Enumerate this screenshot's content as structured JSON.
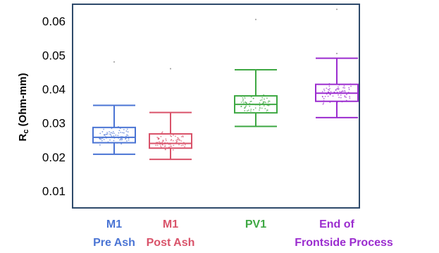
{
  "chart_data": {
    "type": "box",
    "ylabel": "Rc (Ohm-mm)",
    "ylabel_main": "R",
    "ylabel_sub": "c",
    "ylabel_rest": " (Ohm-mm)",
    "ylim": [
      0.005,
      0.065
    ],
    "yticks": [
      "0.01",
      "0.02",
      "0.03",
      "0.04",
      "0.05",
      "0.06"
    ],
    "ytick_values": [
      0.01,
      0.02,
      0.03,
      0.04,
      0.05,
      0.06
    ],
    "grid": false,
    "categories": [
      {
        "line1": "M1",
        "line2": "Pre Ash",
        "color": "#4a74d4",
        "whisker_low": 0.0208,
        "q1": 0.0242,
        "median": 0.0258,
        "q3": 0.0287,
        "whisker_high": 0.0352,
        "outliers": [
          0.048
        ]
      },
      {
        "line1": "M1",
        "line2": "Post Ash",
        "color": "#d9536a",
        "whisker_low": 0.0193,
        "q1": 0.0226,
        "median": 0.024,
        "q3": 0.0268,
        "whisker_high": 0.0331,
        "outliers": [
          0.046
        ]
      },
      {
        "line1": "PV1",
        "line2": "",
        "color": "#3ea843",
        "whisker_low": 0.029,
        "q1": 0.033,
        "median": 0.0355,
        "q3": 0.038,
        "whisker_high": 0.0457,
        "outliers": [
          0.0605
        ]
      },
      {
        "line1": "End of",
        "line2": "Frontside Process",
        "color": "#9b2ccf",
        "whisker_low": 0.0316,
        "q1": 0.0364,
        "median": 0.0388,
        "q3": 0.0414,
        "whisker_high": 0.0491,
        "outliers": [
          0.0505,
          0.0635
        ]
      }
    ]
  }
}
